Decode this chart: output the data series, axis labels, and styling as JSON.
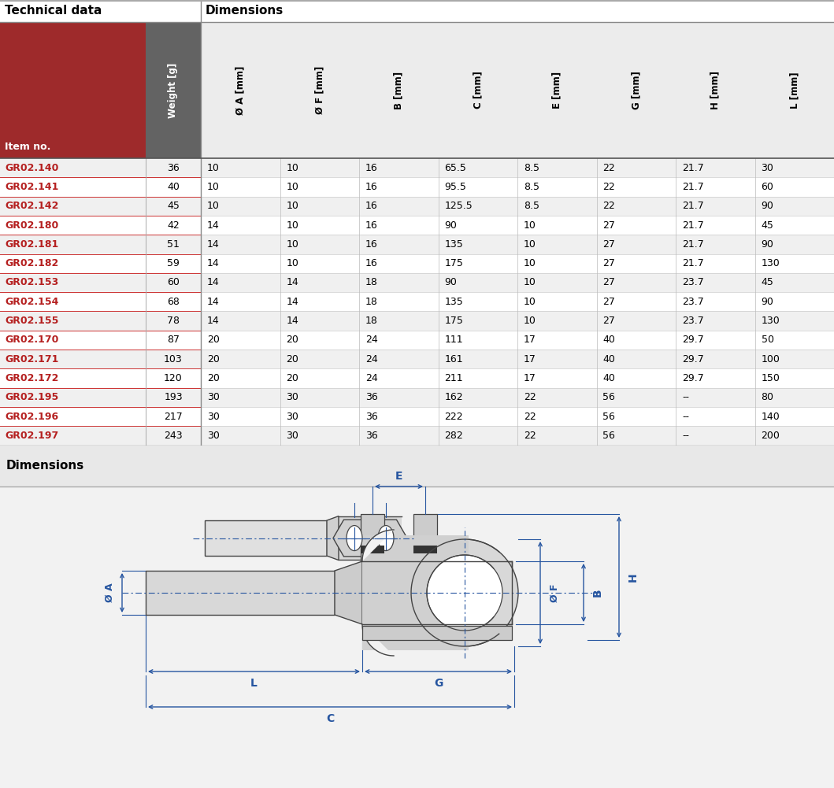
{
  "title_left": "Technical data",
  "title_right": "Dimensions",
  "section2_title": "Dimensions",
  "col_headers_dim": [
    "Ø A [mm]",
    "Ø F [mm]",
    "B [mm]",
    "C [mm]",
    "E [mm]",
    "G [mm]",
    "H [mm]",
    "L [mm]"
  ],
  "rows": [
    [
      "GR02.140",
      "36",
      "10",
      "10",
      "16",
      "65.5",
      "8.5",
      "22",
      "21.7",
      "30"
    ],
    [
      "GR02.141",
      "40",
      "10",
      "10",
      "16",
      "95.5",
      "8.5",
      "22",
      "21.7",
      "60"
    ],
    [
      "GR02.142",
      "45",
      "10",
      "10",
      "16",
      "125.5",
      "8.5",
      "22",
      "21.7",
      "90"
    ],
    [
      "GR02.180",
      "42",
      "14",
      "10",
      "16",
      "90",
      "10",
      "27",
      "21.7",
      "45"
    ],
    [
      "GR02.181",
      "51",
      "14",
      "10",
      "16",
      "135",
      "10",
      "27",
      "21.7",
      "90"
    ],
    [
      "GR02.182",
      "59",
      "14",
      "10",
      "16",
      "175",
      "10",
      "27",
      "21.7",
      "130"
    ],
    [
      "GR02.153",
      "60",
      "14",
      "14",
      "18",
      "90",
      "10",
      "27",
      "23.7",
      "45"
    ],
    [
      "GR02.154",
      "68",
      "14",
      "14",
      "18",
      "135",
      "10",
      "27",
      "23.7",
      "90"
    ],
    [
      "GR02.155",
      "78",
      "14",
      "14",
      "18",
      "175",
      "10",
      "27",
      "23.7",
      "130"
    ],
    [
      "GR02.170",
      "87",
      "20",
      "20",
      "24",
      "111",
      "17",
      "40",
      "29.7",
      "50"
    ],
    [
      "GR02.171",
      "103",
      "20",
      "20",
      "24",
      "161",
      "17",
      "40",
      "29.7",
      "100"
    ],
    [
      "GR02.172",
      "120",
      "20",
      "20",
      "24",
      "211",
      "17",
      "40",
      "29.7",
      "150"
    ],
    [
      "GR02.195",
      "193",
      "30",
      "30",
      "36",
      "162",
      "22",
      "56",
      "--",
      "80"
    ],
    [
      "GR02.196",
      "217",
      "30",
      "30",
      "36",
      "222",
      "22",
      "56",
      "--",
      "140"
    ],
    [
      "GR02.197",
      "243",
      "30",
      "30",
      "36",
      "282",
      "22",
      "56",
      "--",
      "200"
    ]
  ],
  "header_red_bg": "#9e2a2b",
  "header_gray_bg": "#636363",
  "header_light_bg": "#ececec",
  "row_bg_odd": "#f0f0f0",
  "row_bg_even": "#ffffff",
  "red_text": "#b52020",
  "dim_blue": "#2655a0",
  "border_gray": "#aaaaaa",
  "sep_red": "#cc3333",
  "sep_gray": "#cccccc",
  "white": "#ffffff",
  "dark_line": "#333333",
  "body_gray": "#c8c8c8",
  "body_light": "#e0e0e0",
  "body_dark": "#444444"
}
